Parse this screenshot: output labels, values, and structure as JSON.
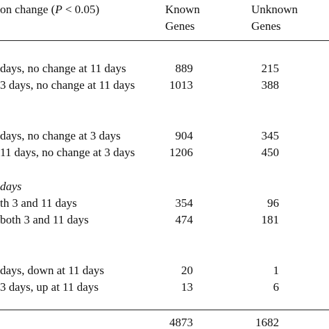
{
  "header": {
    "title_prefix": "on change (",
    "title_p": "P",
    "title_suffix": " < 0.05)",
    "col_known_1": "Known",
    "col_known_2": "Genes",
    "col_unknown_1": "Unknown",
    "col_unknown_2": "Genes"
  },
  "rows": [
    {
      "label": "days, no change at 11 days",
      "known": "889",
      "unknown": "215"
    },
    {
      "label": "3 days, no change at 11 days",
      "known": "1013",
      "unknown": "388"
    },
    {
      "label": "days, no change at 3 days",
      "known": "904",
      "unknown": "345"
    },
    {
      "label": "11 days, no change at 3 days",
      "known": "1206",
      "unknown": "450"
    },
    {
      "label": "days",
      "known": "",
      "unknown": ""
    },
    {
      "label": "th 3 and 11 days",
      "known": "354",
      "unknown": "96"
    },
    {
      "label": "both 3 and 11 days",
      "known": "474",
      "unknown": "181"
    },
    {
      "label": "days, down at 11 days",
      "known": "20",
      "unknown": "1"
    },
    {
      "label": "3 days, up at 11 days",
      "known": "13",
      "unknown": "6"
    }
  ],
  "totals": {
    "known": "4873",
    "unknown": "1682"
  }
}
